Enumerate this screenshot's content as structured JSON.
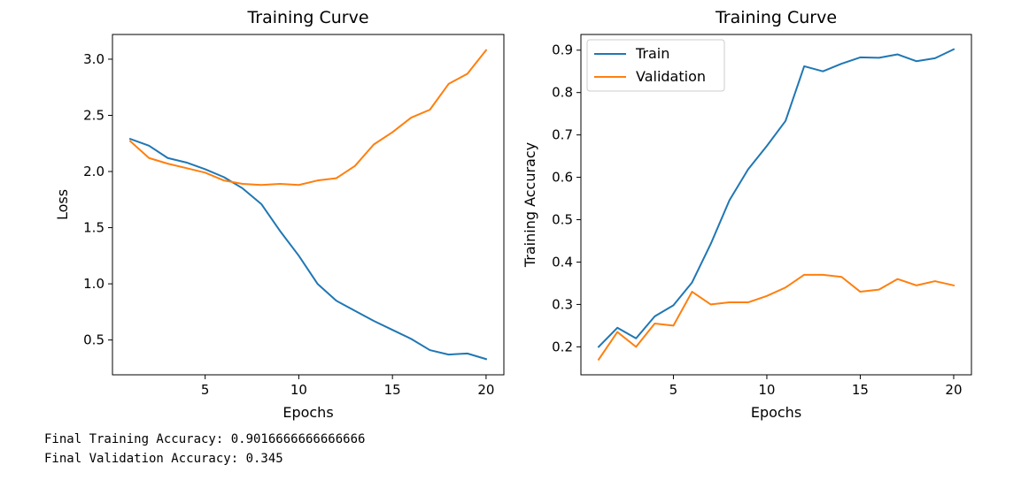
{
  "chart_data": [
    {
      "type": "line",
      "title": "Training Curve",
      "xlabel": "Epochs",
      "ylabel": "Loss",
      "xlim": [
        0.05,
        20.95
      ],
      "ylim": [
        0.19,
        3.22
      ],
      "xticks": [
        5,
        10,
        15,
        20
      ],
      "yticks": [
        0.5,
        1.0,
        1.5,
        2.0,
        2.5,
        3.0
      ],
      "ytick_labels": [
        "0.5",
        "1.0",
        "1.5",
        "2.0",
        "2.5",
        "3.0"
      ],
      "grid": false,
      "legend": null,
      "x": [
        1,
        2,
        3,
        4,
        5,
        6,
        7,
        8,
        9,
        10,
        11,
        12,
        13,
        14,
        15,
        16,
        17,
        18,
        19,
        20
      ],
      "series": [
        {
          "color": "#1f77b4",
          "values": [
            2.29,
            2.23,
            2.12,
            2.08,
            2.02,
            1.95,
            1.85,
            1.71,
            1.47,
            1.25,
            1.0,
            0.85,
            0.76,
            0.67,
            0.59,
            0.51,
            0.41,
            0.37,
            0.38,
            0.33
          ]
        },
        {
          "color": "#ff7f0e",
          "values": [
            2.27,
            2.12,
            2.07,
            2.03,
            1.99,
            1.92,
            1.89,
            1.88,
            1.89,
            1.88,
            1.92,
            1.94,
            2.05,
            2.24,
            2.35,
            2.48,
            2.55,
            2.78,
            2.87,
            3.08
          ]
        }
      ]
    },
    {
      "type": "line",
      "title": "Training Curve",
      "xlabel": "Epochs",
      "ylabel": "Training Accuracy",
      "xlim": [
        0.05,
        20.95
      ],
      "ylim": [
        0.134,
        0.937
      ],
      "xticks": [
        5,
        10,
        15,
        20
      ],
      "yticks": [
        0.2,
        0.3,
        0.4,
        0.5,
        0.6,
        0.7,
        0.8,
        0.9
      ],
      "ytick_labels": [
        "0.2",
        "0.3",
        "0.4",
        "0.5",
        "0.6",
        "0.7",
        "0.8",
        "0.9"
      ],
      "grid": false,
      "legend": "top-left",
      "x": [
        1,
        2,
        3,
        4,
        5,
        6,
        7,
        8,
        9,
        10,
        11,
        12,
        13,
        14,
        15,
        16,
        17,
        18,
        19,
        20
      ],
      "series": [
        {
          "name": "Train",
          "color": "#1f77b4",
          "values": [
            0.2,
            0.245,
            0.22,
            0.272,
            0.298,
            0.352,
            0.443,
            0.546,
            0.619,
            0.674,
            0.733,
            0.862,
            0.85,
            0.868,
            0.883,
            0.882,
            0.89,
            0.874,
            0.881,
            0.902
          ]
        },
        {
          "name": "Validation",
          "color": "#ff7f0e",
          "values": [
            0.17,
            0.235,
            0.2,
            0.255,
            0.25,
            0.33,
            0.3,
            0.305,
            0.305,
            0.32,
            0.34,
            0.37,
            0.37,
            0.365,
            0.33,
            0.335,
            0.36,
            0.345,
            0.355,
            0.345
          ]
        }
      ]
    }
  ],
  "output": {
    "line1": "Final Training Accuracy: 0.9016666666666666",
    "line2": "Final Validation Accuracy: 0.345"
  }
}
